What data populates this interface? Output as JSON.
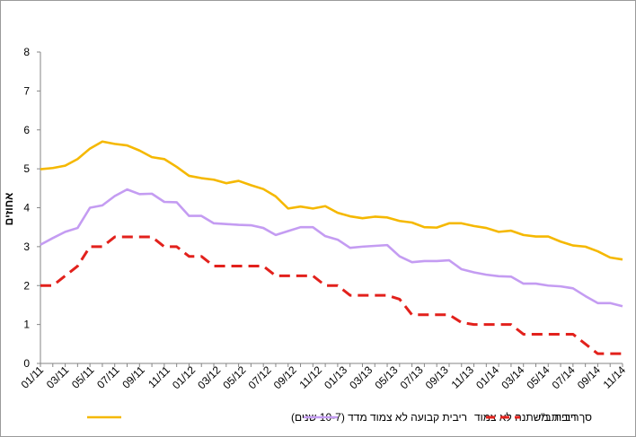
{
  "chart_data": {
    "type": "line",
    "title": "",
    "xlabel": "",
    "ylabel": "אחוזים",
    "ylim": [
      0,
      8
    ],
    "yticks": [
      "0",
      "1",
      "2",
      "3",
      "4",
      "5",
      "6",
      "7",
      "8"
    ],
    "grid": false,
    "legend_position": "bottom",
    "xtick_labels": [
      "01/11",
      "03/11",
      "05/11",
      "07/11",
      "09/11",
      "11/11",
      "01/12",
      "03/12",
      "05/12",
      "07/12",
      "09/12",
      "11/12",
      "01/13",
      "03/13",
      "05/13",
      "07/13",
      "09/13",
      "11/13",
      "01/14",
      "03/14",
      "05/14",
      "07/14",
      "09/14",
      "11/14"
    ],
    "series": [
      {
        "name": "ריבית קבועה לא צמוד מדד (10-7 שנים)",
        "color": "#f5b800",
        "style": "solid",
        "values": [
          4.99,
          5.02,
          5.08,
          5.25,
          5.52,
          5.7,
          5.64,
          5.6,
          5.47,
          5.3,
          5.25,
          5.05,
          4.82,
          4.76,
          4.72,
          4.63,
          4.69,
          4.58,
          4.48,
          4.29,
          3.98,
          4.03,
          3.98,
          4.04,
          3.87,
          3.78,
          3.73,
          3.77,
          3.75,
          3.66,
          3.62,
          3.5,
          3.49,
          3.6,
          3.6,
          3.53,
          3.48,
          3.38,
          3.41,
          3.3,
          3.26,
          3.26,
          3.13,
          3.03,
          3.0,
          2.88,
          2.72,
          2.67
        ]
      },
      {
        "name": "סך ריבית משתנה לא צמוד",
        "color": "#c49cf2",
        "style": "solid",
        "values": [
          3.05,
          3.22,
          3.38,
          3.48,
          4.0,
          4.06,
          4.3,
          4.47,
          4.35,
          4.36,
          4.15,
          4.14,
          3.79,
          3.79,
          3.6,
          3.58,
          3.56,
          3.55,
          3.48,
          3.3,
          3.4,
          3.5,
          3.5,
          3.27,
          3.18,
          2.97,
          3.0,
          3.02,
          3.04,
          2.75,
          2.6,
          2.63,
          2.63,
          2.65,
          2.42,
          2.34,
          2.28,
          2.24,
          2.23,
          2.05,
          2.05,
          2.0,
          1.98,
          1.93,
          1.73,
          1.55,
          1.55,
          1.47
        ]
      },
      {
        "name": "ריבית ב\"י",
        "color": "#e2211c",
        "style": "dashed",
        "values": [
          2.0,
          2.0,
          2.25,
          2.5,
          3.0,
          3.0,
          3.25,
          3.25,
          3.25,
          3.25,
          3.0,
          3.0,
          2.75,
          2.75,
          2.5,
          2.5,
          2.5,
          2.5,
          2.5,
          2.25,
          2.25,
          2.25,
          2.25,
          2.0,
          2.0,
          1.75,
          1.75,
          1.75,
          1.75,
          1.65,
          1.25,
          1.25,
          1.25,
          1.25,
          1.05,
          1.0,
          1.0,
          1.0,
          1.0,
          0.75,
          0.75,
          0.75,
          0.75,
          0.75,
          0.5,
          0.25,
          0.25,
          0.25
        ]
      }
    ]
  }
}
